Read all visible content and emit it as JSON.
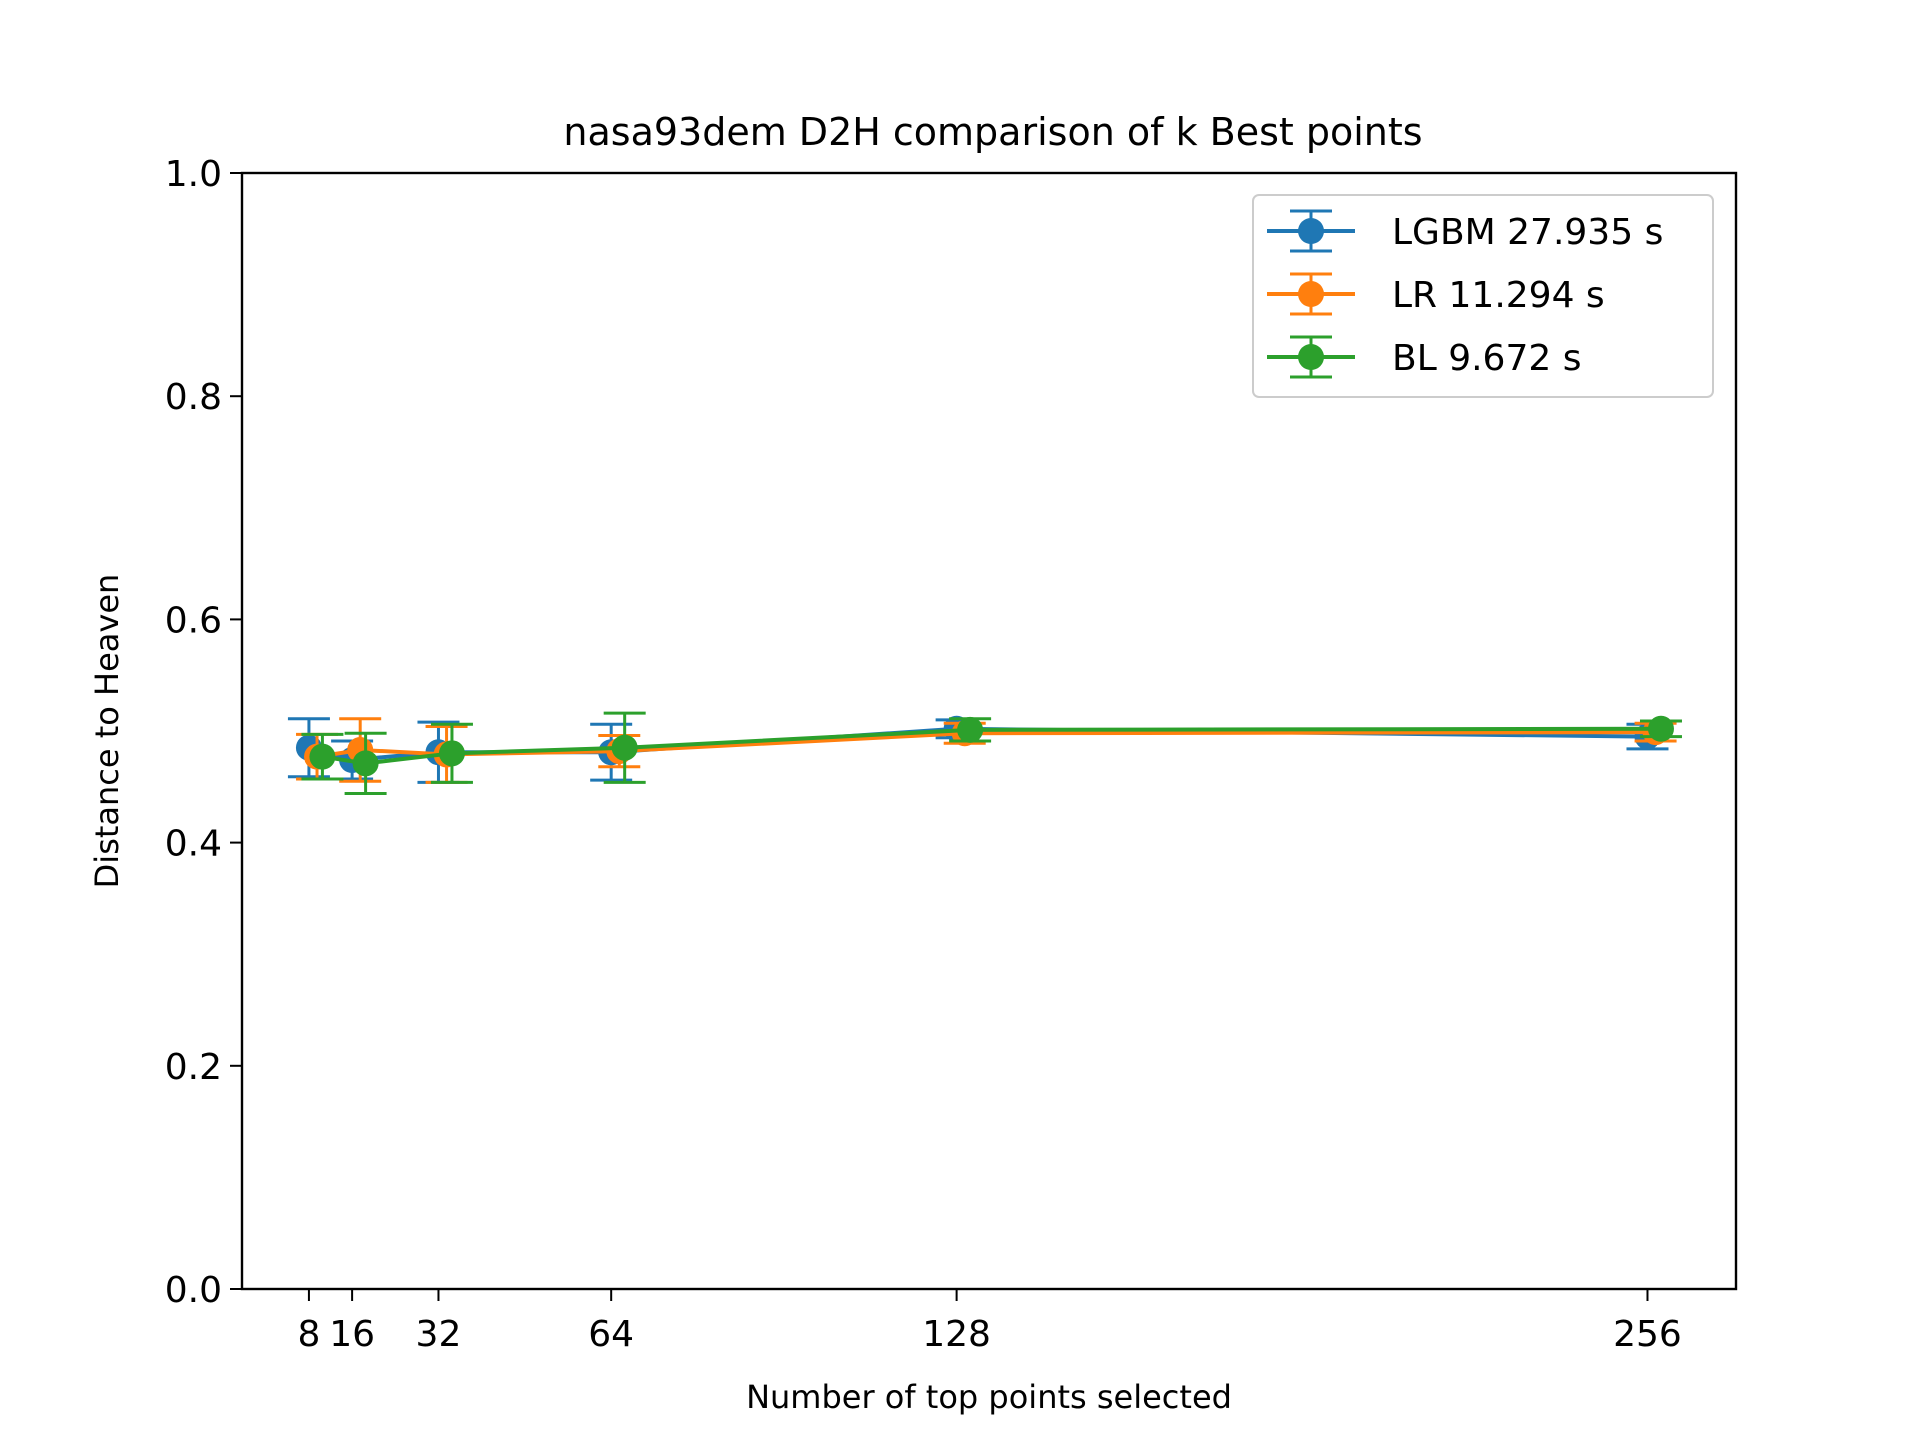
{
  "chart_data": {
    "type": "line",
    "title": "nasa93dem D2H comparison of k Best points",
    "xlabel": "Number of top points selected",
    "ylabel": "Distance to Heaven",
    "xlim": [
      -4.4,
      272.4
    ],
    "ylim": [
      0.0,
      1.0
    ],
    "xticks": [
      8,
      16,
      32,
      64,
      128,
      256
    ],
    "yticks": [
      0.0,
      0.2,
      0.4,
      0.6,
      0.8,
      1.0
    ],
    "ytick_labels": [
      "0.0",
      "0.2",
      "0.4",
      "0.6",
      "0.8",
      "1.0"
    ],
    "grid": false,
    "legend_position": "top-right",
    "series": [
      {
        "name": "LGBM 27.935 s",
        "color": "#1f77b4",
        "x": [
          8,
          16,
          32,
          64,
          128,
          256
        ],
        "y": [
          0.485,
          0.474,
          0.481,
          0.481,
          0.502,
          0.495
        ],
        "err": [
          0.026,
          0.017,
          0.027,
          0.025,
          0.008,
          0.011
        ]
      },
      {
        "name": "LR 11.294 s",
        "color": "#ff7f0e",
        "x": [
          9.5,
          17.5,
          33.5,
          65.5,
          129.5,
          257.5
        ],
        "y": [
          0.477,
          0.483,
          0.479,
          0.482,
          0.498,
          0.499
        ],
        "err": [
          0.02,
          0.028,
          0.025,
          0.014,
          0.009,
          0.008
        ]
      },
      {
        "name": "BL 9.672 s",
        "color": "#2ca02c",
        "x": [
          10.5,
          18.5,
          34.5,
          66.5,
          130.5,
          258.5
        ],
        "y": [
          0.477,
          0.471,
          0.48,
          0.485,
          0.501,
          0.502
        ],
        "err": [
          0.02,
          0.027,
          0.026,
          0.031,
          0.01,
          0.007
        ]
      }
    ]
  }
}
